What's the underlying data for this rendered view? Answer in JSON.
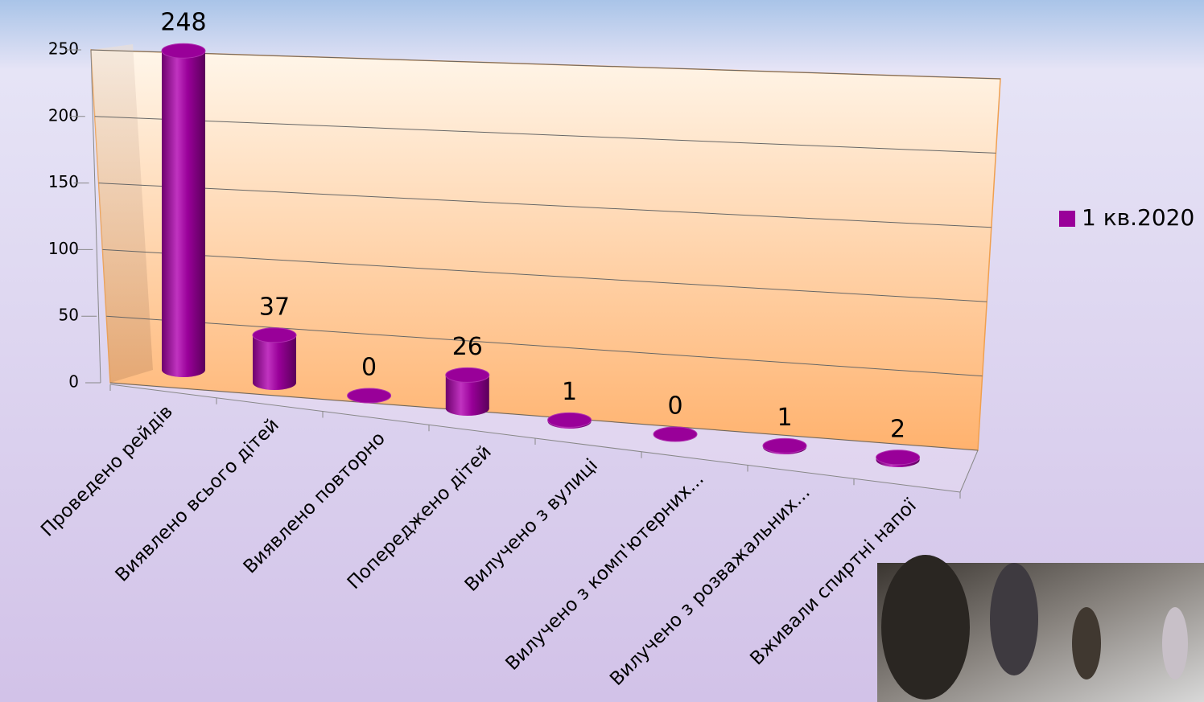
{
  "chart_data": {
    "type": "bar3d",
    "categories": [
      "Проведено рейдів",
      "Виявлено всього дітей",
      "Виявлено повторно",
      "Попереджено дітей",
      "Вилучено з вулиці",
      "Вилучено з комп'ютерних...",
      "Вилучено з розважальних...",
      "Вживали спиртні напої"
    ],
    "series": [
      {
        "name": "1 кв.2020",
        "color": "#990099",
        "values": [
          248,
          37,
          0,
          26,
          1,
          0,
          1,
          2
        ]
      }
    ],
    "ylim": [
      0,
      250
    ],
    "yticks": [
      0,
      50,
      100,
      150,
      200,
      250
    ],
    "grid": true,
    "legend": "right"
  }
}
